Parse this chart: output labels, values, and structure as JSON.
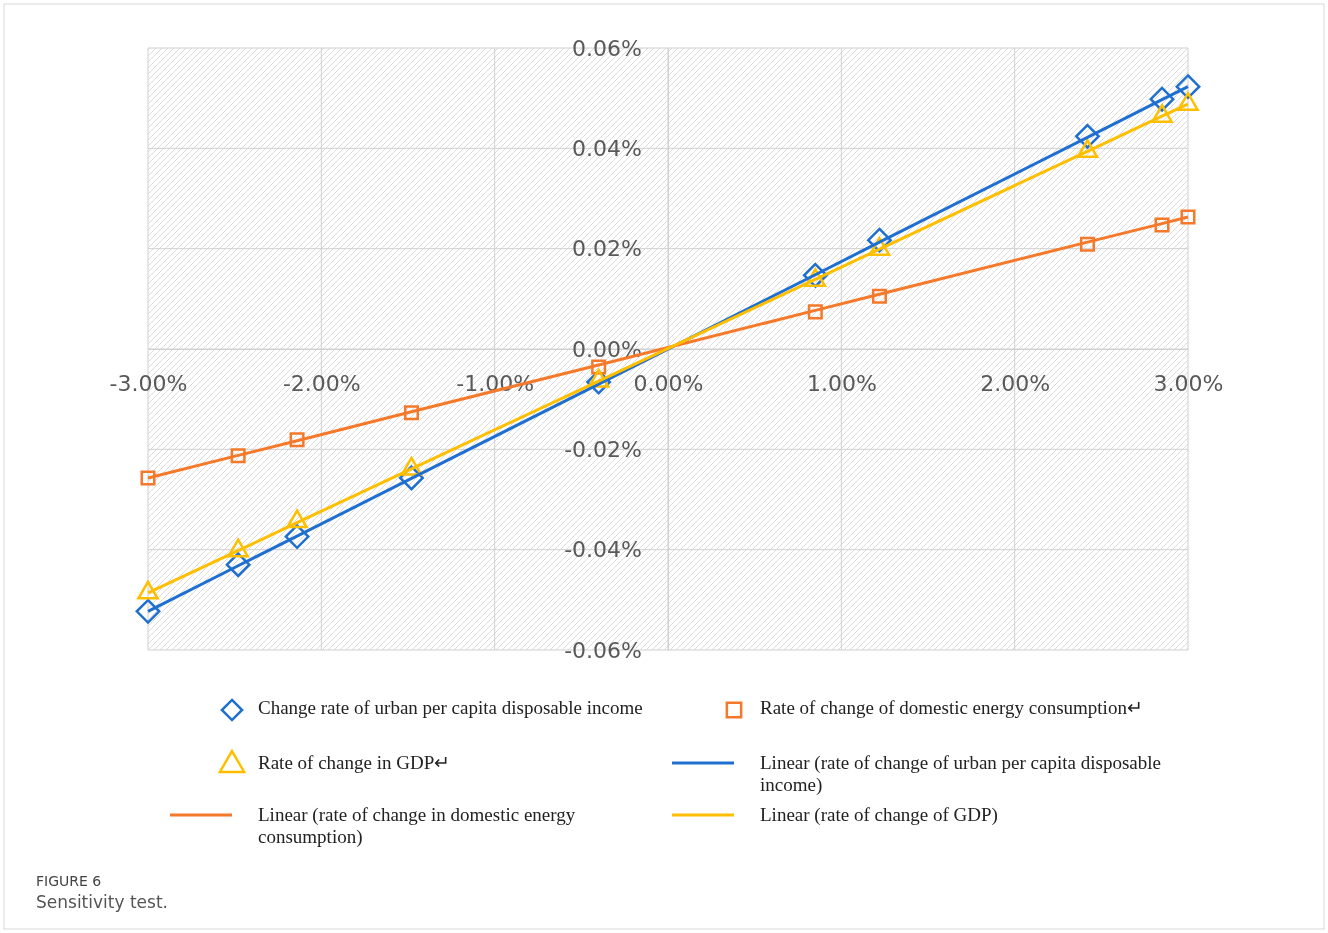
{
  "chart_data": {
    "type": "scatter",
    "xlim": [
      -3,
      3
    ],
    "ylim": [
      -0.06,
      0.06
    ],
    "xticks": [
      {
        "value": -3,
        "label": "-3.00%"
      },
      {
        "value": -2,
        "label": "-2.00%"
      },
      {
        "value": -1,
        "label": "-1.00%"
      },
      {
        "value": 0,
        "label": "0.00%"
      },
      {
        "value": 1,
        "label": "1.00%"
      },
      {
        "value": 2,
        "label": "2.00%"
      },
      {
        "value": 3,
        "label": "3.00%"
      }
    ],
    "yticks": [
      {
        "value": -0.06,
        "label": "-0.06%"
      },
      {
        "value": -0.04,
        "label": "-0.04%"
      },
      {
        "value": -0.02,
        "label": "-0.02%"
      },
      {
        "value": 0,
        "label": "0.00%"
      },
      {
        "value": 0.02,
        "label": "0.02%"
      },
      {
        "value": 0.04,
        "label": "0.04%"
      },
      {
        "value": 0.06,
        "label": "0.06%"
      }
    ],
    "grid": true,
    "legend": "bottom",
    "x": [
      -3.0,
      -2.48,
      -2.14,
      -1.48,
      -0.4,
      0.85,
      1.22,
      2.42,
      2.85,
      3.0
    ],
    "series": [
      {
        "name": "Change rate of urban per capita disposable income",
        "color": "#1f6fd1",
        "marker": "diamond",
        "values": [
          -0.0523,
          -0.043,
          -0.0374,
          -0.0257,
          -0.0066,
          0.0147,
          0.0217,
          0.0424,
          0.0498,
          0.0523
        ]
      },
      {
        "name": "Rate of change of domestic energy consumption↵",
        "color": "#f5792a",
        "marker": "square",
        "values": [
          -0.0257,
          -0.0213,
          -0.0181,
          -0.0127,
          -0.0036,
          0.0074,
          0.0105,
          0.0209,
          0.0247,
          0.0263
        ]
      },
      {
        "name": "Rate of change in GDP↵",
        "color": "#ffbf00",
        "marker": "triangle",
        "values": [
          -0.0486,
          -0.0402,
          -0.0344,
          -0.0239,
          -0.0064,
          0.0137,
          0.0199,
          0.0394,
          0.0464,
          0.0488
        ]
      },
      {
        "name": "Linear (rate of change of urban per capita disposable income)",
        "type": "line",
        "color": "#1f6fd1",
        "marker": "none",
        "values": [
          -0.0523,
          -0.0432,
          -0.0373,
          -0.0258,
          -0.007,
          0.0148,
          0.0213,
          0.0422,
          0.0497,
          0.0523
        ]
      },
      {
        "name": "Linear (rate of change in domestic energy consumption)",
        "type": "line",
        "color": "#f5792a",
        "marker": "none",
        "values": [
          -0.0257,
          -0.0212,
          -0.0183,
          -0.0125,
          -0.0032,
          0.0077,
          0.0109,
          0.0213,
          0.025,
          0.0263
        ]
      },
      {
        "name": "Linear (rate of change of GDP)",
        "type": "line",
        "color": "#ffbf00",
        "marker": "none",
        "values": [
          -0.0486,
          -0.0402,
          -0.0346,
          -0.0239,
          -0.0064,
          0.0139,
          0.0199,
          0.0394,
          0.0464,
          0.0488
        ]
      }
    ],
    "annotations": [
      "FIGURE 6",
      "Sensitivity test."
    ]
  }
}
